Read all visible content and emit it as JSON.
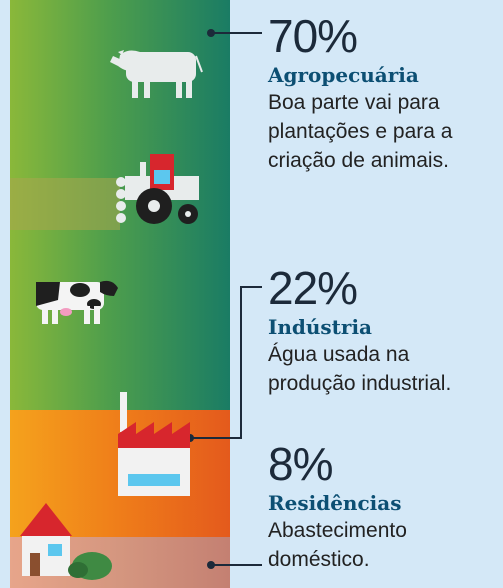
{
  "segments": [
    {
      "key": "agro",
      "percent": "70%",
      "title": "Agropecuária",
      "description_lines": [
        "Boa parte vai para",
        "plantações e para a",
        "criação de animais."
      ],
      "color": "#1a7c64"
    },
    {
      "key": "industria",
      "percent": "22%",
      "title": "Indústria",
      "description_lines": [
        "Água usada na",
        "produção industrial."
      ],
      "color": "#ef7d1a"
    },
    {
      "key": "residencias",
      "percent": "8%",
      "title": "Residências",
      "description_lines": [
        "Abastecimento",
        "doméstico."
      ],
      "color": "#d4967f"
    }
  ],
  "icons": [
    "ox-icon",
    "tractor-icon",
    "cow-icon",
    "factory-icon",
    "house-icon"
  ],
  "colors": {
    "background": "#d4e8f7",
    "title": "#0c4f73",
    "connector": "#1c2a3a"
  }
}
